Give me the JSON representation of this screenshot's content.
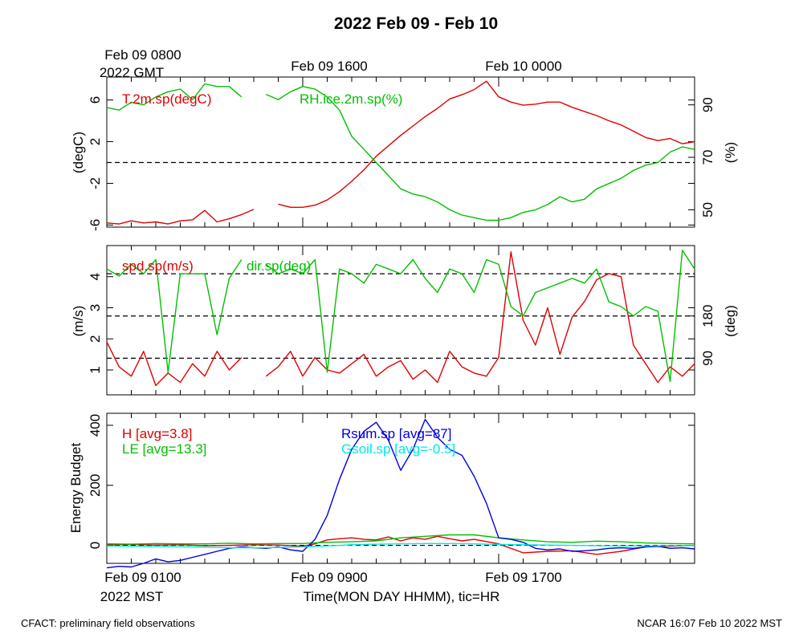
{
  "title": "2022 Feb 09 - Feb 10",
  "top_time_labels": {
    "first_line1": "Feb 09 0800",
    "first_line2": "2022 GMT",
    "second": "Feb 09 1600",
    "third": "Feb 10 0000"
  },
  "bottom_time_labels": {
    "first_line1": "Feb 09 0100",
    "first_line2": "2022 MST",
    "second": "Feb 09 0900",
    "third": "Feb 09 1700"
  },
  "xlabel": "Time(MON DAY HHMM), tic=HR",
  "footer": {
    "left": "CFACT: preliminary field observations",
    "right": "NCAR 16:07 Feb 10 2022 MST"
  },
  "colors": {
    "red": "#e00000",
    "green": "#00c000",
    "blue": "#0000e0",
    "cyan": "#00e8e8"
  },
  "chart_data": [
    {
      "type": "line",
      "panel": "temperature-humidity",
      "xlim": [
        0,
        24
      ],
      "ylabel_left": "(degC)",
      "ylabel_right": "(%)",
      "ylim_left": [
        -6.2,
        8.2
      ],
      "ylim_right": [
        43.4,
        100.6
      ],
      "yticks_left": [
        "6",
        "2",
        "-2",
        "-6"
      ],
      "yticks_right": [
        "90",
        "70",
        "50"
      ],
      "reference_lines_left": [
        0
      ],
      "series": [
        {
          "name": "T.2m.sp(degC)",
          "axis": "left",
          "color": "red",
          "x": [
            0,
            0.5,
            1,
            1.5,
            2,
            2.5,
            3,
            3.5,
            4,
            4.5,
            5,
            5.5,
            6,
            6.5,
            7,
            7.5,
            8,
            8.5,
            9,
            9.5,
            10,
            10.5,
            11,
            11.5,
            12,
            12.5,
            13,
            13.5,
            14,
            14.5,
            15,
            15.5,
            16,
            16.5,
            17,
            17.5,
            18,
            18.5,
            19,
            19.5,
            20,
            20.5,
            21,
            21.5,
            22,
            22.5,
            23,
            23.5,
            24
          ],
          "y": [
            -5.8,
            -5.9,
            -5.6,
            -5.8,
            -5.7,
            -5.9,
            -5.6,
            -5.5,
            -4.6,
            -5.7,
            -5.4,
            -5.0,
            -4.5,
            null,
            -4.0,
            -4.3,
            -4.3,
            -4.1,
            -3.6,
            -2.8,
            -1.8,
            -0.7,
            0.6,
            1.6,
            2.6,
            3.5,
            4.4,
            5.2,
            6.1,
            6.5,
            7.0,
            7.8,
            6.3,
            5.8,
            5.5,
            5.6,
            5.8,
            5.8,
            5.3,
            4.9,
            4.5,
            4.0,
            3.6,
            3.0,
            2.4,
            2.1,
            2.3,
            1.8,
            2.0
          ]
        },
        {
          "name": "RH.ice.2m.sp(%)",
          "axis": "right",
          "color": "green",
          "x": [
            0,
            0.5,
            1,
            1.5,
            2,
            2.5,
            3,
            3.5,
            4,
            4.5,
            5,
            5.5,
            6,
            6.5,
            7,
            7.5,
            8,
            8.5,
            9,
            9.5,
            10,
            10.5,
            11,
            11.5,
            12,
            12.5,
            13,
            13.5,
            14,
            14.5,
            15,
            15.5,
            16,
            16.5,
            17,
            17.5,
            18,
            18.5,
            19,
            19.5,
            20,
            20.5,
            21,
            21.5,
            22,
            22.5,
            23,
            23.5,
            24
          ],
          "y": [
            89,
            88,
            91,
            90,
            93,
            95,
            96,
            92,
            98,
            97,
            97,
            93,
            null,
            94,
            92,
            95,
            97,
            96,
            93,
            88,
            78,
            73,
            68,
            63,
            58,
            56,
            55,
            53,
            50,
            48,
            47,
            46,
            46,
            47,
            49,
            50,
            52,
            55,
            53,
            54,
            58,
            60,
            62,
            65,
            67,
            68,
            72,
            74,
            73
          ]
        }
      ]
    },
    {
      "type": "line",
      "panel": "wind",
      "xlim": [
        0,
        24
      ],
      "ylabel_left": "(m/s)",
      "ylabel_right": "(deg)",
      "ylim_left": [
        0.2,
        5.0
      ],
      "ylim_right": [
        12,
        330
      ],
      "yticks_left": [
        "4",
        "3",
        "2",
        "1"
      ],
      "yticks_right": [
        "180",
        "90"
      ],
      "reference_lines_right": [
        90,
        180,
        270
      ],
      "series": [
        {
          "name": "spd.sp(m/s)",
          "axis": "left",
          "color": "red",
          "x": [
            0,
            0.5,
            1,
            1.5,
            2,
            2.5,
            3,
            3.5,
            4,
            4.5,
            5,
            5.5,
            6,
            6.5,
            7,
            7.5,
            8,
            8.5,
            9,
            9.5,
            10,
            10.5,
            11,
            11.5,
            12,
            12.5,
            13,
            13.5,
            14,
            14.5,
            15,
            15.5,
            16,
            16.5,
            17,
            17.5,
            18,
            18.5,
            19,
            19.5,
            20,
            20.5,
            21,
            21.5,
            22,
            22.5,
            23,
            23.5,
            24
          ],
          "y": [
            1.9,
            1.1,
            0.8,
            1.6,
            0.5,
            0.9,
            0.6,
            1.2,
            0.8,
            1.6,
            1.0,
            1.4,
            null,
            0.8,
            1.1,
            1.6,
            0.8,
            1.4,
            1.0,
            0.9,
            1.2,
            1.5,
            0.8,
            1.1,
            1.3,
            0.7,
            1.0,
            0.6,
            1.6,
            1.1,
            0.9,
            0.8,
            1.4,
            4.8,
            2.6,
            1.8,
            3.0,
            1.5,
            2.7,
            3.2,
            3.9,
            4.1,
            4.0,
            1.8,
            1.2,
            0.6,
            1.1,
            0.8,
            1.2
          ]
        },
        {
          "name": "dir.sp(deg)",
          "axis": "right",
          "color": "green",
          "x": [
            0,
            0.5,
            1,
            1.5,
            2,
            2.5,
            3,
            3.5,
            4,
            4.5,
            5,
            5.5,
            6,
            6.5,
            7,
            7.5,
            8,
            8.5,
            9,
            9.5,
            10,
            10.5,
            11,
            11.5,
            12,
            12.5,
            13,
            13.5,
            14,
            14.5,
            15,
            15.5,
            16,
            16.5,
            17,
            17.5,
            18,
            18.5,
            19,
            19.5,
            20,
            20.5,
            21,
            21.5,
            22,
            22.5,
            23,
            23.5,
            24
          ],
          "y": [
            280,
            265,
            290,
            270,
            300,
            60,
            270,
            270,
            270,
            140,
            260,
            300,
            null,
            290,
            270,
            280,
            270,
            300,
            60,
            280,
            270,
            250,
            290,
            280,
            270,
            300,
            260,
            230,
            280,
            270,
            230,
            300,
            290,
            200,
            180,
            230,
            240,
            250,
            260,
            250,
            280,
            210,
            200,
            180,
            200,
            190,
            40,
            320,
            280
          ]
        }
      ]
    },
    {
      "type": "line",
      "panel": "energy-budget",
      "xlim": [
        0,
        24
      ],
      "ylabel_left": "Energy Budget",
      "ylim": [
        -60,
        440
      ],
      "yticks_left": [
        "400",
        "200",
        "0"
      ],
      "reference_lines_left": [
        0
      ],
      "series": [
        {
          "name": "H [avg=3.8]",
          "color": "red",
          "x": [
            0,
            1,
            2,
            3,
            4,
            5,
            6,
            7,
            8,
            8.5,
            9,
            9.5,
            10,
            10.5,
            11,
            11.5,
            12,
            12.5,
            13,
            13.5,
            14,
            14.5,
            15,
            16,
            17,
            18,
            19,
            20,
            21,
            22,
            23,
            24
          ],
          "y": [
            2,
            3,
            1,
            2,
            -1,
            0,
            2,
            1,
            -3,
            5,
            18,
            22,
            25,
            20,
            18,
            28,
            15,
            25,
            20,
            30,
            22,
            15,
            20,
            5,
            -25,
            -20,
            -18,
            -30,
            -20,
            -5,
            -3,
            0
          ]
        },
        {
          "name": "LE [avg=13.3]",
          "color": "green",
          "x": [
            0,
            1,
            2,
            3,
            4,
            5,
            6,
            7,
            8,
            9,
            10,
            11,
            12,
            13,
            14,
            15,
            16,
            17,
            18,
            19,
            20,
            21,
            22,
            23,
            24
          ],
          "y": [
            5,
            4,
            6,
            5,
            5,
            7,
            5,
            6,
            6,
            10,
            12,
            15,
            25,
            30,
            35,
            35,
            25,
            18,
            12,
            10,
            14,
            12,
            8,
            6,
            5
          ]
        },
        {
          "name": "Rsum.sp [avg=87]",
          "color": "blue",
          "x": [
            0,
            0.5,
            1,
            1.5,
            2,
            2.5,
            3,
            3.5,
            4,
            4.5,
            5,
            5.5,
            6,
            6.5,
            7,
            7.5,
            8,
            8.5,
            9,
            9.5,
            10,
            10.5,
            11,
            11.5,
            12,
            12.5,
            13,
            13.5,
            14,
            14.5,
            15,
            15.5,
            16,
            16.5,
            17,
            17.5,
            18,
            18.5,
            19,
            19.5,
            20,
            20.5,
            21,
            21.5,
            22,
            22.5,
            23,
            23.5,
            24
          ],
          "y": [
            -75,
            -70,
            -72,
            -60,
            -45,
            -55,
            -50,
            -40,
            -30,
            -20,
            -10,
            -5,
            -8,
            -10,
            -5,
            -15,
            -20,
            20,
            100,
            220,
            320,
            380,
            410,
            350,
            250,
            320,
            420,
            360,
            320,
            300,
            230,
            140,
            25,
            20,
            10,
            -10,
            -15,
            -12,
            -20,
            -18,
            -15,
            -10,
            -8,
            -10,
            -5,
            -3,
            -10,
            -8,
            -12
          ]
        },
        {
          "name": "Gsoil.sp [avg=-0.5]",
          "color": "cyan",
          "x": [
            0,
            1,
            2,
            3,
            4,
            5,
            6,
            7,
            8,
            9,
            10,
            11,
            12,
            13,
            14,
            15,
            16,
            17,
            18,
            19,
            20,
            21,
            22,
            23,
            24
          ],
          "y": [
            -2,
            -3,
            -4,
            -5,
            -6,
            -8,
            -8,
            -7,
            -5,
            -2,
            2,
            4,
            5,
            6,
            6,
            5,
            3,
            2,
            1,
            0,
            -1,
            -2,
            -2,
            -1,
            -1
          ]
        }
      ]
    }
  ]
}
